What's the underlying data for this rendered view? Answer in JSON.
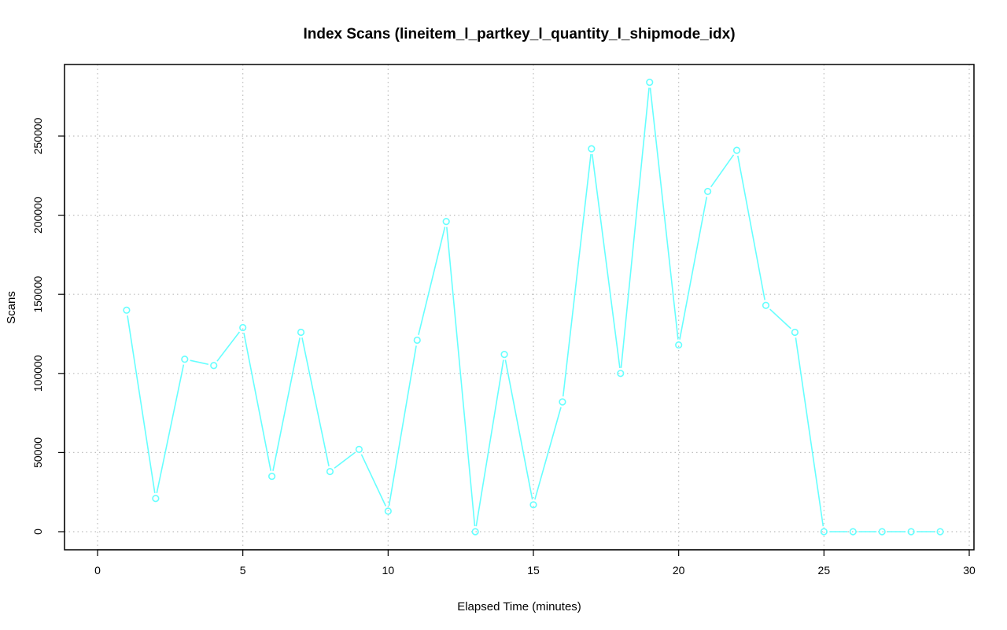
{
  "chart_data": {
    "type": "line",
    "title": "Index Scans (lineitem_l_partkey_l_quantity_l_shipmode_idx)",
    "xlabel": "Elapsed Time (minutes)",
    "ylabel": "Scans",
    "xlim": [
      0,
      30
    ],
    "ylim": [
      0,
      290000
    ],
    "x_ticks": [
      0,
      5,
      10,
      15,
      20,
      25,
      30
    ],
    "y_ticks": [
      0,
      50000,
      100000,
      150000,
      200000,
      250000
    ],
    "grid": true,
    "series_color": "#66ffff",
    "marker": "open-circle",
    "x": [
      1,
      2,
      3,
      4,
      5,
      6,
      7,
      8,
      9,
      10,
      11,
      12,
      13,
      14,
      15,
      16,
      17,
      18,
      19,
      20,
      21,
      22,
      23,
      24,
      25,
      26,
      27,
      28,
      29
    ],
    "series": [
      {
        "values": [
          140000,
          21000,
          109000,
          105000,
          129000,
          35000,
          126000,
          38000,
          52000,
          13000,
          121000,
          196000,
          0,
          112000,
          17000,
          82000,
          242000,
          100000,
          284000,
          118000,
          215000,
          241000,
          143000,
          126000,
          0,
          0,
          0,
          0,
          0
        ]
      }
    ]
  }
}
